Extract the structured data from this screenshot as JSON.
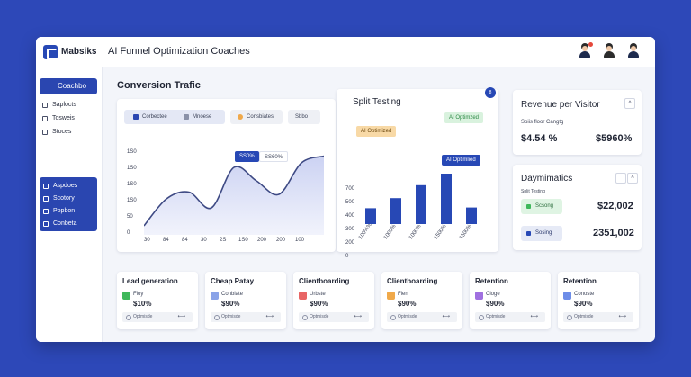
{
  "header": {
    "brand": "Mabsiks",
    "title": "AI Funnel Optimization Coaches"
  },
  "sidebar": {
    "primary": "Coachbo",
    "items": [
      "Saplocts",
      "Tosweis",
      "Stoces"
    ],
    "group_items": [
      "Aspdoes",
      "Scotory",
      "Popbon",
      "Conbeta"
    ]
  },
  "conversion": {
    "title": "Conversion Trafic",
    "tabs": [
      "Corbectee",
      "Mnoese",
      "Consbiates",
      "Sbbo"
    ],
    "tooltip_a": "SS0%",
    "tooltip_b": "SS60%",
    "y_ticks": [
      "1S0",
      "1S0",
      "1S0",
      "1S0",
      "50",
      "0"
    ],
    "x_ticks": [
      "30",
      "84",
      "84",
      "30",
      "2S",
      "1S0",
      "200",
      "200",
      "100"
    ],
    "chart_data": {
      "type": "area",
      "x": [
        30,
        84,
        84,
        30,
        "2S",
        "1S0",
        200,
        200,
        100
      ],
      "values": [
        20,
        80,
        95,
        60,
        150,
        120,
        90,
        160,
        175
      ],
      "ylim": [
        0,
        190
      ]
    },
    "colors": {
      "line": "#3e4a84",
      "fill": "#c9d0f2"
    }
  },
  "split": {
    "title": "Split Testing",
    "badge_top": "AI Optimzed",
    "badge_orange": "AI Optimized",
    "badge_blue": "AI Optimlied",
    "corner_badge": "8",
    "y_ticks": [
      "700",
      "500",
      "400",
      "300",
      "200",
      "0"
    ],
    "x_ticks": [
      "100%%",
      "1000%",
      "1000%",
      "1500%",
      "1500%"
    ],
    "chart_data": {
      "type": "bar",
      "categories": [
        "100%%",
        "1000%",
        "1000%",
        "1500%",
        "1500%"
      ],
      "values": [
        220,
        360,
        540,
        700,
        230
      ],
      "ylim": [
        0,
        750
      ]
    },
    "colors": {
      "bar": "#2748b5"
    }
  },
  "revenue": {
    "title": "Revenue per Visitor",
    "subtitle": "Spiis floor Cangtg",
    "value_left": "$4.54 %",
    "value_right": "$5960%"
  },
  "dynamics": {
    "title": "Daymimatics",
    "subtitle": "Split Testing",
    "row1_label": "Scsong",
    "row1_value": "$22,002",
    "row2_label": "Sosing",
    "row2_value": "2351,002"
  },
  "metrics": [
    {
      "title": "Lead generation",
      "tag": "Floy",
      "value": "$10%",
      "foot": "Optmisde",
      "color": "#3fb85b"
    },
    {
      "title": "Cheap Patay",
      "tag": "Conblate",
      "value": "$90%",
      "foot": "Optmisde",
      "color": "#8aa3e8"
    },
    {
      "title": "Clientboarding",
      "tag": "Urbste",
      "value": "$90%",
      "foot": "Optmisde",
      "color": "#e86565"
    },
    {
      "title": "Clientboarding",
      "tag": "Flen",
      "value": "$90%",
      "foot": "Optmisde",
      "color": "#f0a94a"
    },
    {
      "title": "Retention",
      "tag": "Cloge",
      "value": "$90%",
      "foot": "Optmisde",
      "color": "#a070e0"
    },
    {
      "title": "Retention",
      "tag": "Conoste",
      "value": "$90%",
      "foot": "Optmisde",
      "color": "#6d8de8"
    }
  ],
  "metric_arrow": "⟷"
}
